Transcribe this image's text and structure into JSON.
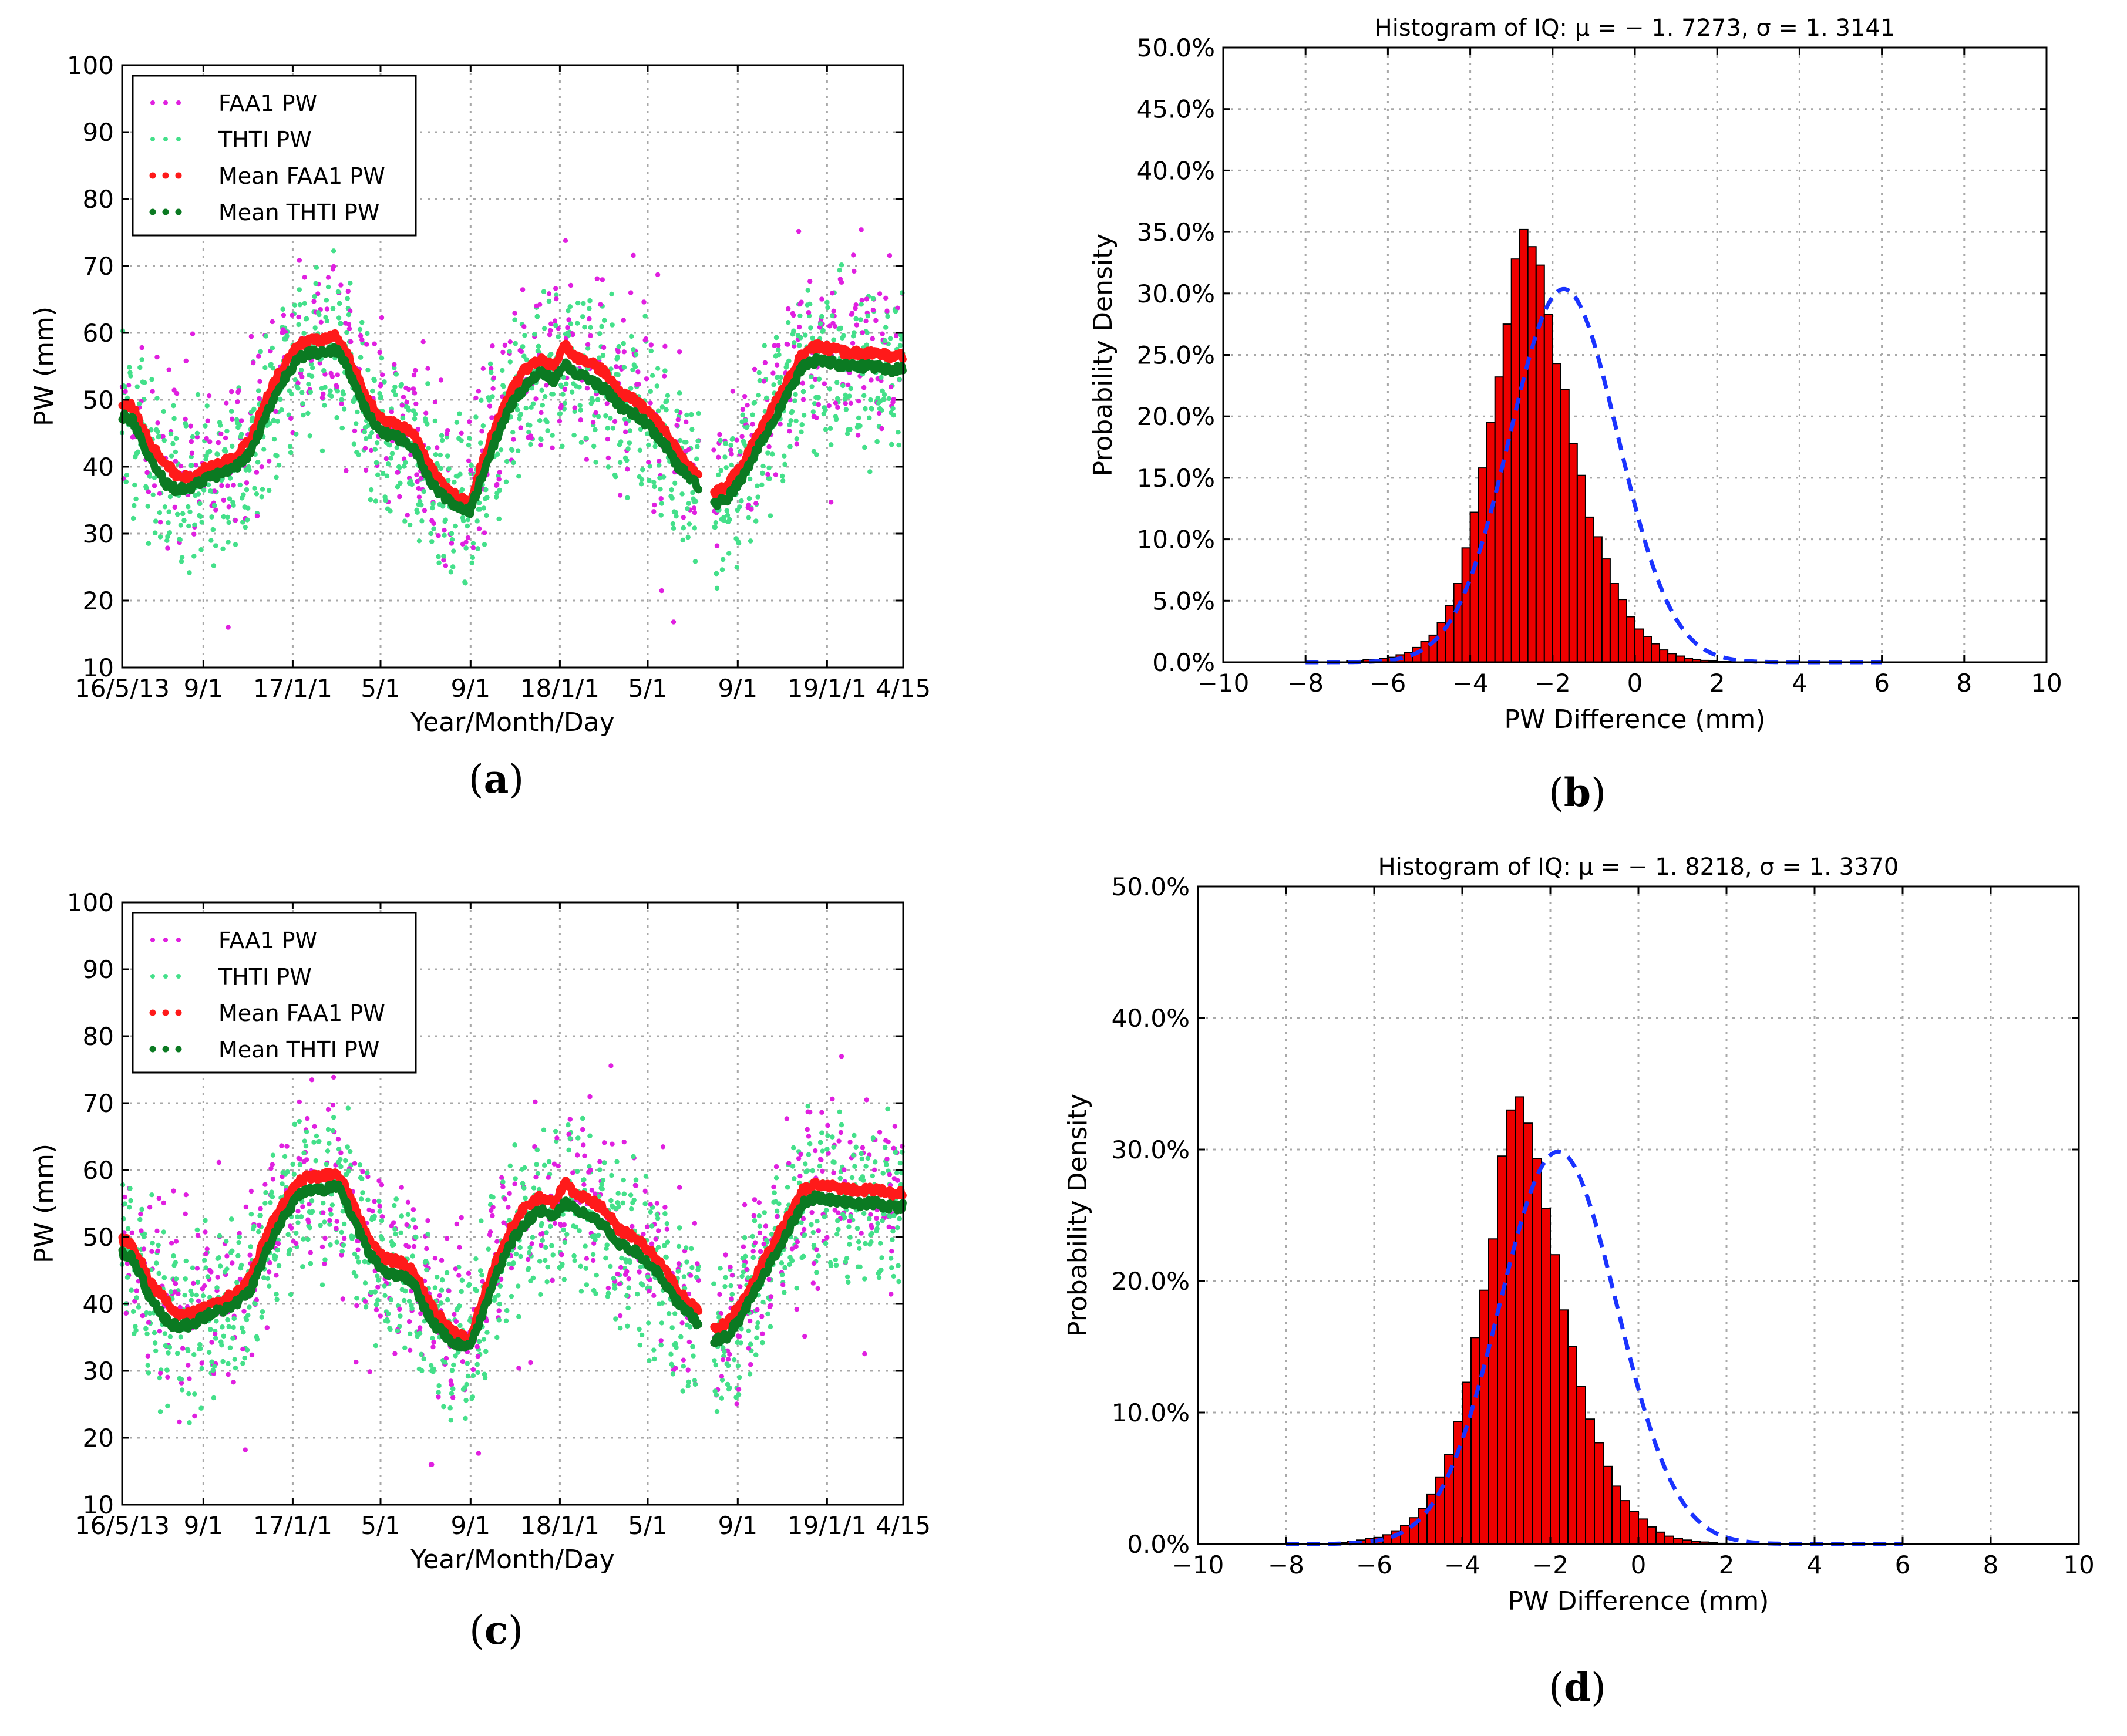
{
  "panels": {
    "a": {
      "label_open": "(",
      "letter": "a",
      "label_close": ")"
    },
    "b": {
      "label_open": "(",
      "letter": "b",
      "label_close": ")"
    },
    "c": {
      "label_open": "(",
      "letter": "c",
      "label_close": ")"
    },
    "d": {
      "label_open": "(",
      "letter": "d",
      "label_close": ")"
    }
  },
  "colors": {
    "faa1": "#e020e0",
    "thti": "#44e08a",
    "mean_faa1": "#ff1a1a",
    "mean_thti": "#0b7a22",
    "hist_fill": "#ee0000",
    "hist_edge": "#000000",
    "normal_fit": "#1a33ff"
  },
  "chart_data": [
    {
      "id": "a",
      "type": "scatter",
      "title": "",
      "xlabel": "Year/Month/Day",
      "ylabel": "PW (mm)",
      "x_unit": "days since 2016-05-13",
      "xlim": [
        0,
        1067
      ],
      "ylim": [
        10,
        100
      ],
      "yticks": [
        10,
        20,
        30,
        40,
        50,
        60,
        70,
        80,
        90,
        100
      ],
      "xticks": [
        {
          "value": 0,
          "label": "16/5/13"
        },
        {
          "value": 111,
          "label": "9/1"
        },
        {
          "value": 233,
          "label": "17/1/1"
        },
        {
          "value": 353,
          "label": "5/1"
        },
        {
          "value": 476,
          "label": "9/1"
        },
        {
          "value": 598,
          "label": "18/1/1"
        },
        {
          "value": 718,
          "label": "5/1"
        },
        {
          "value": 841,
          "label": "9/1"
        },
        {
          "value": 963,
          "label": "19/1/1"
        },
        {
          "value": 1067,
          "label": "4/15"
        }
      ],
      "grid": true,
      "legend_position": "top-left",
      "gap_days": [
        788,
        808
      ],
      "series": [
        {
          "name": "FAA1 PW",
          "color_key": "faa1",
          "kind": "scatter"
        },
        {
          "name": "THTI PW",
          "color_key": "thti",
          "kind": "scatter"
        },
        {
          "name": "Mean FAA1 PW",
          "color_key": "mean_faa1",
          "kind": "line",
          "x": [
            0,
            14,
            40,
            60,
            76,
            95,
            111,
            135,
            155,
            175,
            200,
            220,
            240,
            255,
            270,
            295,
            315,
            335,
            355,
            370,
            385,
            400,
            415,
            430,
            450,
            465,
            476,
            490,
            510,
            530,
            550,
            570,
            590,
            605,
            620,
            640,
            660,
            680,
            700,
            720,
            740,
            760,
            775,
            787,
            808,
            825,
            845,
            870,
            890,
            910,
            930,
            950,
            970,
            990,
            1010,
            1030,
            1050,
            1067
          ],
          "values": [
            49.5,
            49,
            43,
            40.5,
            38.5,
            38.5,
            39.5,
            40.5,
            41.5,
            44,
            51,
            55,
            58,
            59,
            59,
            59.5,
            55,
            50,
            47,
            46.5,
            46,
            44.5,
            41,
            38.5,
            36,
            35,
            34.5,
            40,
            46,
            51,
            54.5,
            56,
            55,
            58,
            56.5,
            55.5,
            54,
            51,
            50,
            48,
            45.5,
            42,
            40,
            39,
            36,
            37,
            40,
            45,
            49,
            53,
            57,
            58,
            57.5,
            57,
            57,
            57,
            56.5,
            56.5
          ]
        },
        {
          "name": "Mean THTI PW",
          "color_key": "mean_thti",
          "kind": "line",
          "x": [
            0,
            14,
            40,
            60,
            76,
            95,
            111,
            135,
            155,
            175,
            200,
            220,
            240,
            255,
            270,
            295,
            315,
            335,
            355,
            370,
            385,
            400,
            415,
            430,
            450,
            465,
            476,
            490,
            510,
            530,
            550,
            570,
            590,
            605,
            620,
            640,
            660,
            680,
            700,
            720,
            740,
            760,
            775,
            787,
            808,
            825,
            845,
            870,
            890,
            910,
            930,
            950,
            970,
            990,
            1010,
            1030,
            1050,
            1067
          ],
          "values": [
            47.5,
            47,
            40.5,
            37.5,
            36.5,
            37,
            38,
            39,
            40,
            42,
            48.5,
            53,
            56,
            57,
            57,
            57.5,
            53,
            48,
            45,
            44.5,
            44,
            42.5,
            39,
            36.5,
            34.5,
            33.5,
            33.5,
            38,
            44,
            49,
            52,
            54,
            53,
            55.5,
            54,
            53,
            51.5,
            49,
            48,
            46,
            43.5,
            40,
            38.5,
            37,
            34.5,
            35,
            38,
            43,
            47,
            51,
            55,
            56,
            55.5,
            55,
            55,
            55,
            54.5,
            54.5
          ]
        }
      ]
    },
    {
      "id": "b",
      "type": "bar",
      "title": "Histogram of IQ: μ = − 1. 7273, σ = 1. 3141",
      "xlabel": "PW Difference (mm)",
      "ylabel": "Probability Density",
      "xlim": [
        -10,
        10
      ],
      "ylim": [
        0,
        50
      ],
      "xticks": [
        -10,
        -8,
        -6,
        -4,
        -2,
        0,
        2,
        4,
        6,
        8,
        10
      ],
      "xtick_labels": [
        "−10",
        "−8",
        "−6",
        "−4",
        "−2",
        "0",
        "2",
        "4",
        "6",
        "8",
        "10"
      ],
      "yticks": [
        0,
        5,
        10,
        15,
        20,
        25,
        30,
        35,
        40,
        45,
        50
      ],
      "ytick_labels": [
        "0.0%",
        "5.0%",
        "10.0%",
        "15.0%",
        "20.0%",
        "25.0%",
        "30.0%",
        "35.0%",
        "40.0%",
        "45.0%",
        "50.0%"
      ],
      "grid": true,
      "bin_edges_start": -8.0,
      "bin_width": 0.2,
      "values": [
        0,
        0,
        0,
        0,
        0,
        0.1,
        0.1,
        0.2,
        0.2,
        0.3,
        0.4,
        0.6,
        0.8,
        1.2,
        1.7,
        2.2,
        3.2,
        4.6,
        6.4,
        9.3,
        12.2,
        15.8,
        19.5,
        23.2,
        27.5,
        32.8,
        35.2,
        33.8,
        32.3,
        28.3,
        24.3,
        22.2,
        17.8,
        15.2,
        11.8,
        10.2,
        8.4,
        6.4,
        5.1,
        3.7,
        2.7,
        2.1,
        1.5,
        1.0,
        0.7,
        0.5,
        0.3,
        0.2,
        0.15,
        0.1,
        0.05,
        0.05,
        0.02,
        0.02,
        0.01,
        0.01,
        0,
        0,
        0,
        0,
        0,
        0,
        0,
        0,
        0,
        0,
        0,
        0,
        0,
        0
      ],
      "fit": {
        "mu": -1.7273,
        "sigma": 1.3141,
        "xlim": [
          -8,
          6
        ],
        "style": "dashed"
      }
    },
    {
      "id": "c",
      "type": "scatter",
      "title": "",
      "xlabel": "Year/Month/Day",
      "ylabel": "PW (mm)",
      "x_unit": "days since 2016-05-13",
      "xlim": [
        0,
        1067
      ],
      "ylim": [
        10,
        100
      ],
      "yticks": [
        10,
        20,
        30,
        40,
        50,
        60,
        70,
        80,
        90,
        100
      ],
      "xticks": [
        {
          "value": 0,
          "label": "16/5/13"
        },
        {
          "value": 111,
          "label": "9/1"
        },
        {
          "value": 233,
          "label": "17/1/1"
        },
        {
          "value": 353,
          "label": "5/1"
        },
        {
          "value": 476,
          "label": "9/1"
        },
        {
          "value": 598,
          "label": "18/1/1"
        },
        {
          "value": 718,
          "label": "5/1"
        },
        {
          "value": 841,
          "label": "9/1"
        },
        {
          "value": 963,
          "label": "19/1/1"
        },
        {
          "value": 1067,
          "label": "4/15"
        }
      ],
      "grid": true,
      "legend_position": "top-left",
      "gap_days": [
        788,
        808
      ],
      "series": [
        {
          "name": "FAA1 PW",
          "color_key": "faa1",
          "kind": "scatter"
        },
        {
          "name": "THTI PW",
          "color_key": "thti",
          "kind": "scatter"
        },
        {
          "name": "Mean FAA1 PW",
          "color_key": "mean_faa1",
          "kind": "line",
          "x": [
            0,
            14,
            40,
            60,
            76,
            95,
            111,
            135,
            155,
            175,
            200,
            220,
            240,
            255,
            270,
            295,
            315,
            335,
            355,
            370,
            385,
            400,
            415,
            430,
            450,
            465,
            476,
            490,
            510,
            530,
            550,
            570,
            590,
            605,
            620,
            640,
            660,
            680,
            700,
            720,
            740,
            760,
            775,
            787,
            808,
            825,
            845,
            870,
            890,
            910,
            930,
            950,
            970,
            990,
            1010,
            1030,
            1050,
            1067
          ],
          "values": [
            49.5,
            49,
            43,
            40.5,
            38.5,
            38.5,
            39.5,
            40.5,
            41.5,
            44,
            51,
            55,
            58,
            59,
            59,
            59.5,
            55,
            50,
            47,
            46.5,
            46,
            44.5,
            41,
            38.5,
            36,
            35,
            34.5,
            40,
            46,
            51,
            54.5,
            56,
            55,
            58,
            56.5,
            55.5,
            54,
            51,
            50,
            48,
            45.5,
            42,
            40,
            39,
            36,
            37,
            40,
            45,
            49,
            53,
            57,
            58,
            57.5,
            57,
            57,
            57,
            56.5,
            56.5
          ]
        },
        {
          "name": "Mean THTI PW",
          "color_key": "mean_thti",
          "kind": "line",
          "x": [
            0,
            14,
            40,
            60,
            76,
            95,
            111,
            135,
            155,
            175,
            200,
            220,
            240,
            255,
            270,
            295,
            315,
            335,
            355,
            370,
            385,
            400,
            415,
            430,
            450,
            465,
            476,
            490,
            510,
            530,
            550,
            570,
            590,
            605,
            620,
            640,
            660,
            680,
            700,
            720,
            740,
            760,
            775,
            787,
            808,
            825,
            845,
            870,
            890,
            910,
            930,
            950,
            970,
            990,
            1010,
            1030,
            1050,
            1067
          ],
          "values": [
            47.5,
            47,
            40.5,
            37.5,
            36.5,
            37,
            38,
            39,
            40,
            42,
            48.5,
            53,
            56,
            57,
            57,
            57.5,
            53,
            48,
            45,
            44.5,
            44,
            42.5,
            39,
            36.5,
            34.5,
            33.5,
            33.5,
            38,
            44,
            49,
            52,
            54,
            53,
            55.5,
            54,
            53,
            51.5,
            49,
            48,
            46,
            43.5,
            40,
            38.5,
            37,
            34.5,
            35,
            38,
            43,
            47,
            51,
            55,
            56,
            55.5,
            55,
            55,
            55,
            54.5,
            54.5
          ]
        }
      ]
    },
    {
      "id": "d",
      "type": "bar",
      "title": "Histogram of IQ: μ = − 1. 8218, σ = 1. 3370",
      "xlabel": "PW Difference (mm)",
      "ylabel": "Probability Density",
      "xlim": [
        -10,
        10
      ],
      "ylim": [
        0,
        50
      ],
      "xticks": [
        -10,
        -8,
        -6,
        -4,
        -2,
        0,
        2,
        4,
        6,
        8,
        10
      ],
      "xtick_labels": [
        "−10",
        "−8",
        "−6",
        "−4",
        "−2",
        "0",
        "2",
        "4",
        "6",
        "8",
        "10"
      ],
      "yticks": [
        0,
        10,
        20,
        30,
        40,
        50
      ],
      "ytick_labels": [
        "0.0%",
        "10.0%",
        "20.0%",
        "30.0%",
        "40.0%",
        "50.0%"
      ],
      "grid": true,
      "bin_edges_start": -8.0,
      "bin_width": 0.2,
      "values": [
        0,
        0,
        0,
        0,
        0,
        0.1,
        0.1,
        0.2,
        0.3,
        0.4,
        0.5,
        0.7,
        1.0,
        1.4,
        2.0,
        2.7,
        3.8,
        5.1,
        6.8,
        9.3,
        12.3,
        15.7,
        19.3,
        23.2,
        29.5,
        33.0,
        34.0,
        32.0,
        29.3,
        25.5,
        22.0,
        17.8,
        15.0,
        12.0,
        9.5,
        7.7,
        5.9,
        4.4,
        3.3,
        2.5,
        1.9,
        1.3,
        0.9,
        0.6,
        0.4,
        0.3,
        0.2,
        0.15,
        0.1,
        0.05,
        0.05,
        0.02,
        0.02,
        0.01,
        0.01,
        0,
        0,
        0,
        0,
        0,
        0,
        0,
        0,
        0,
        0,
        0,
        0,
        0,
        0,
        0
      ],
      "fit": {
        "mu": -1.8218,
        "sigma": 1.337,
        "xlim": [
          -8,
          6
        ],
        "style": "dashed"
      }
    }
  ]
}
